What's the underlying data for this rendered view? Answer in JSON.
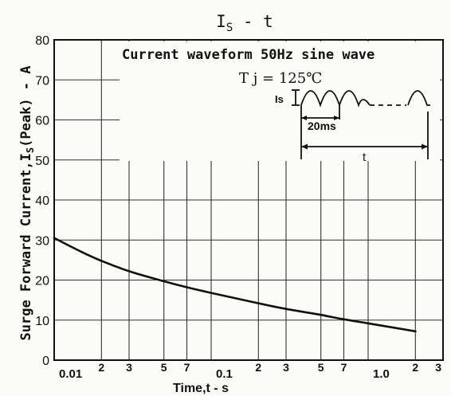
{
  "chart_data": {
    "type": "line",
    "title": "Is - t",
    "title_main": "I",
    "title_sub": "S",
    "title_tail": " - t",
    "xlabel": "Time,t - s",
    "ylabel": "Surge Forward Current,IS(Peak) - A",
    "ylabel_main": "Surge Forward Current,I",
    "ylabel_sub": "S",
    "ylabel_tail": "(Peak) - A",
    "x_scale": "log",
    "xlim": [
      0.01,
      3
    ],
    "ylim": [
      0,
      80
    ],
    "grid": true,
    "x_ticks": [
      {
        "value": 0.01,
        "label": "0.01"
      },
      {
        "value": 0.02,
        "label": "2"
      },
      {
        "value": 0.03,
        "label": "3"
      },
      {
        "value": 0.05,
        "label": "5"
      },
      {
        "value": 0.07,
        "label": "7"
      },
      {
        "value": 0.1,
        "label": "0.1"
      },
      {
        "value": 0.2,
        "label": "2"
      },
      {
        "value": 0.3,
        "label": "3"
      },
      {
        "value": 0.5,
        "label": "5"
      },
      {
        "value": 0.7,
        "label": "7"
      },
      {
        "value": 1.0,
        "label": "1.0"
      },
      {
        "value": 2,
        "label": "2"
      },
      {
        "value": 3,
        "label": "3"
      }
    ],
    "y_ticks": [
      {
        "value": 0,
        "label": "0"
      },
      {
        "value": 10,
        "label": "10"
      },
      {
        "value": 20,
        "label": "20"
      },
      {
        "value": 30,
        "label": "30"
      },
      {
        "value": 40,
        "label": "40"
      },
      {
        "value": 50,
        "label": "50"
      },
      {
        "value": 60,
        "label": "60"
      },
      {
        "value": 70,
        "label": "70"
      },
      {
        "value": 80,
        "label": "80"
      }
    ],
    "series": [
      {
        "x": [
          0.01,
          0.015,
          0.02,
          0.03,
          0.05,
          0.07,
          0.1,
          0.2,
          0.3,
          0.5,
          0.7,
          1.0,
          2.0
        ],
        "y": [
          30.5,
          27.0,
          24.8,
          22.2,
          19.7,
          18.2,
          16.8,
          14.2,
          12.8,
          11.3,
          10.2,
          9.2,
          7.2
        ]
      }
    ],
    "annotations": {
      "line1": "Current waveform 50Hz sine wave",
      "line2": "T j = 125℃",
      "is_label": "Is",
      "period_label": "20ms",
      "t_label": "t"
    }
  }
}
